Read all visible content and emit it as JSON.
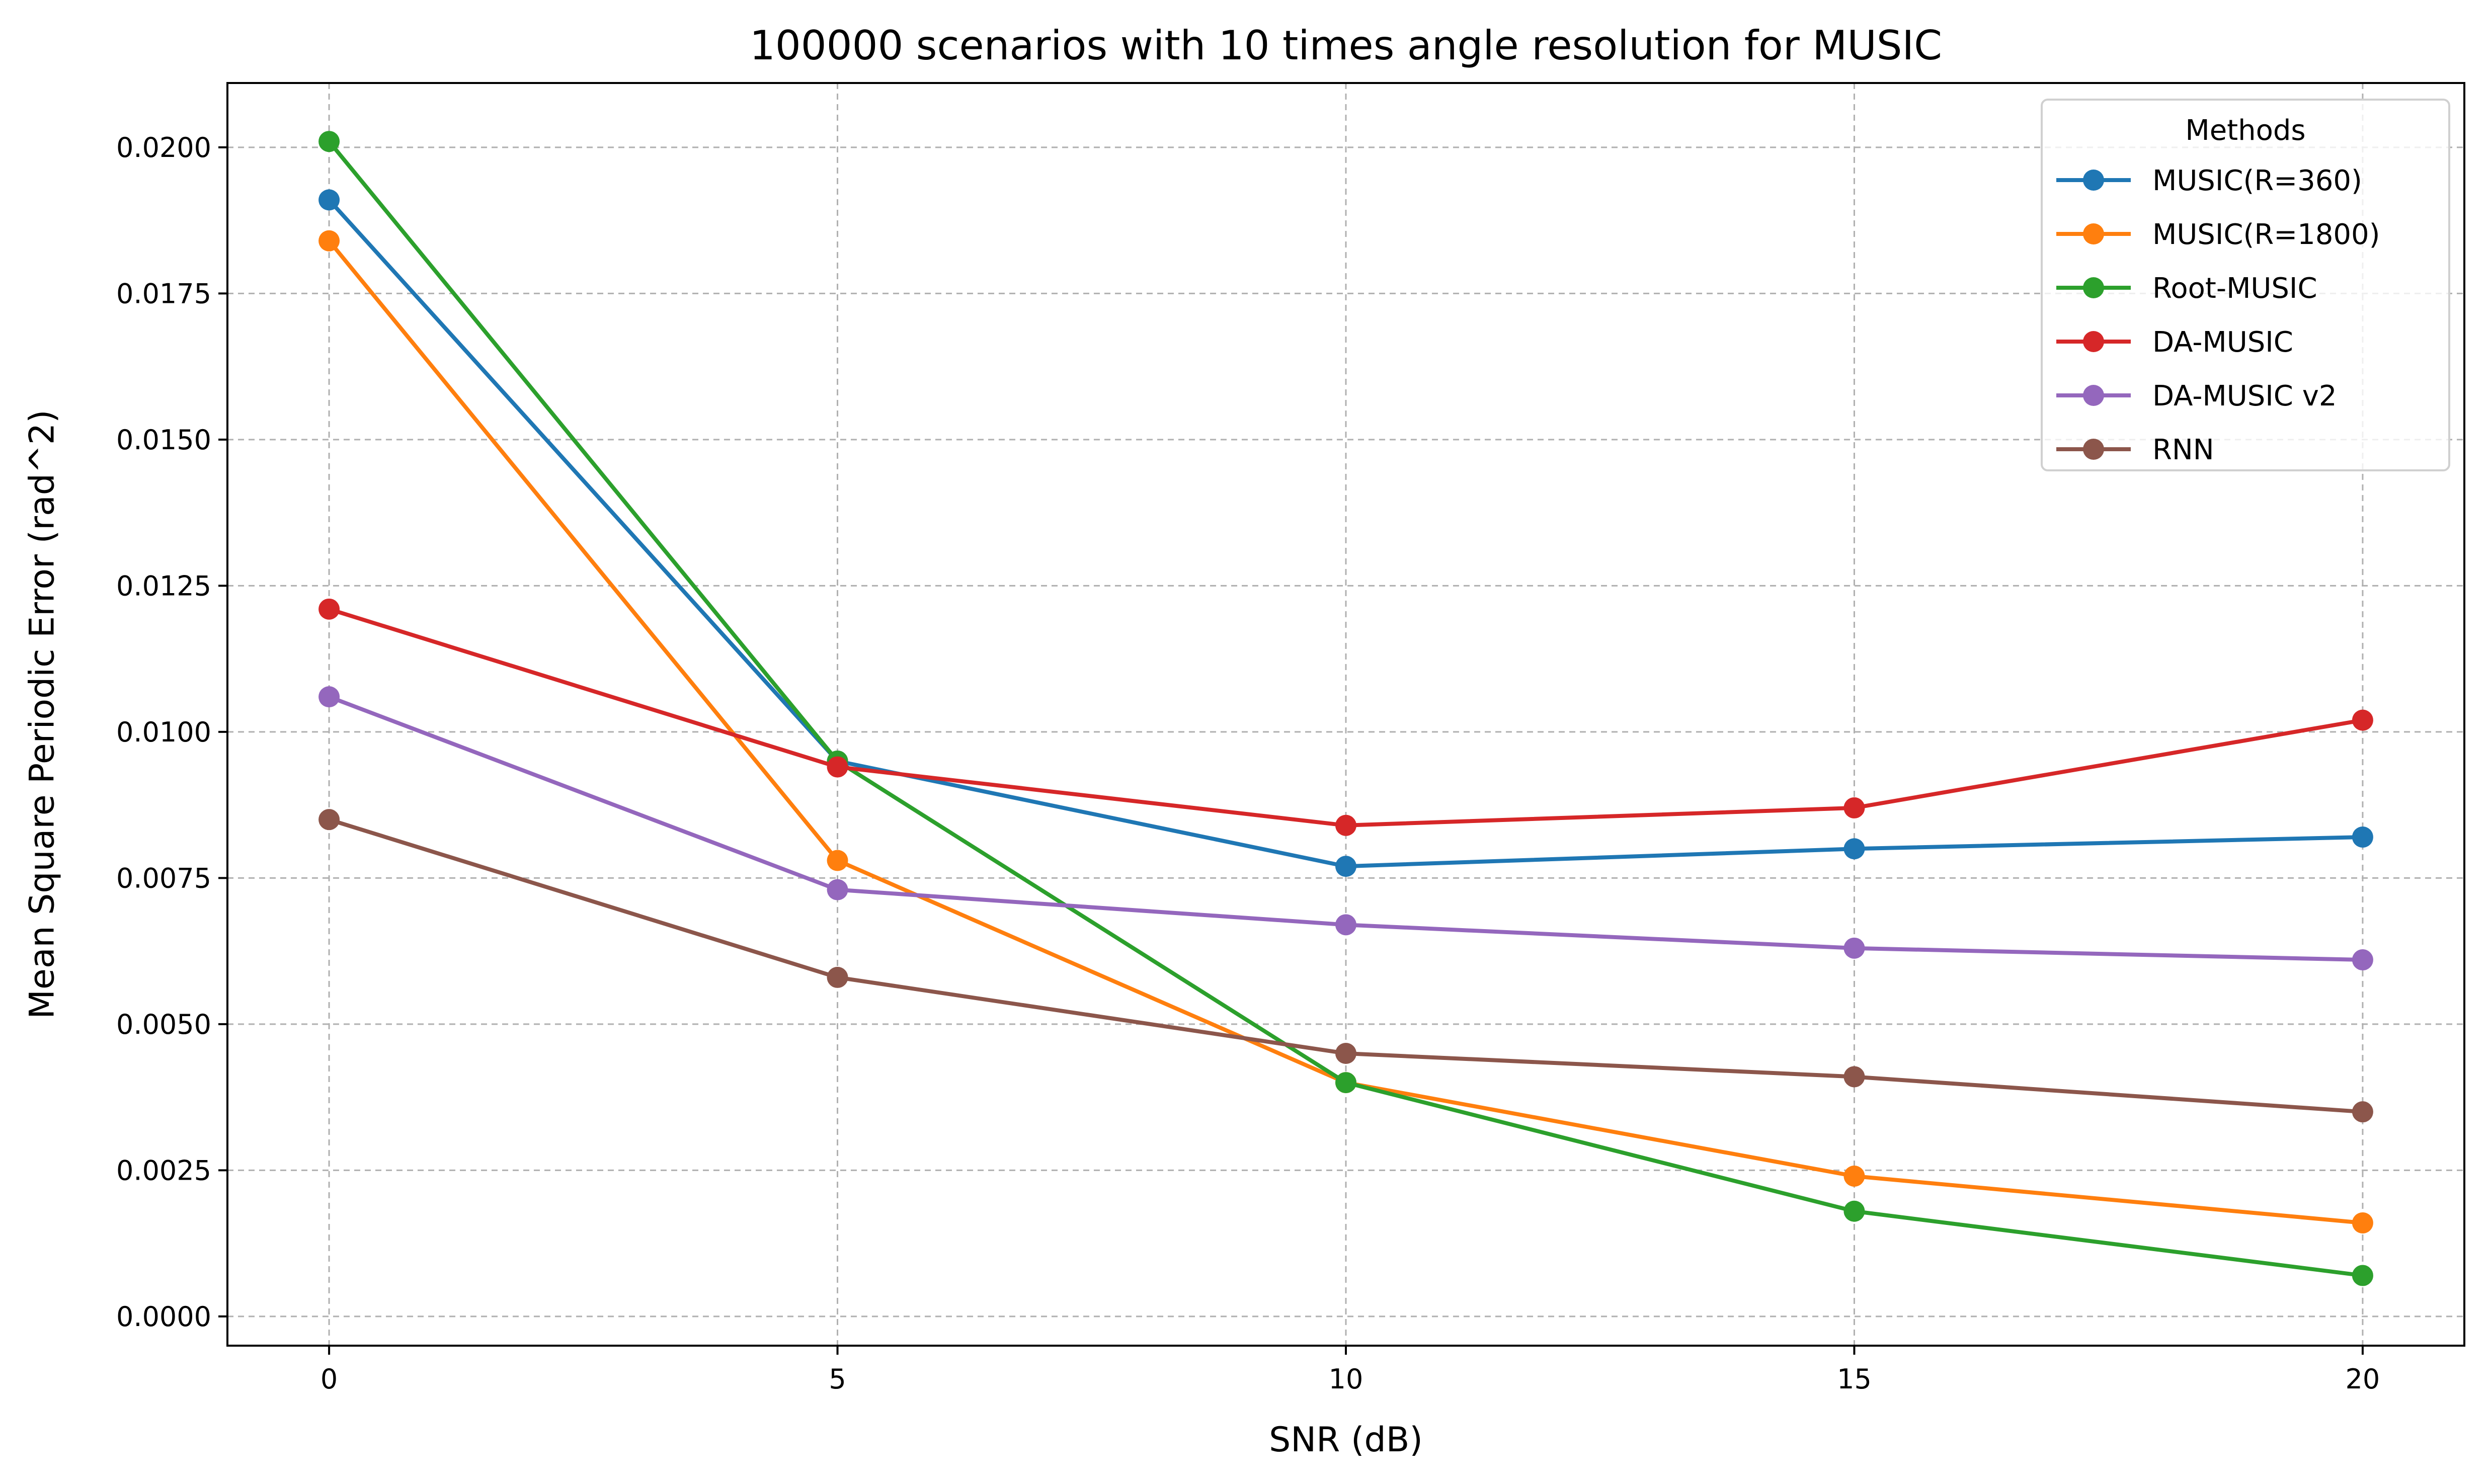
{
  "chart_data": {
    "type": "line",
    "title": "100000 scenarios with 10 times angle resolution for MUSIC",
    "xlabel": "SNR (dB)",
    "ylabel": "Mean Square Periodic Error (rad^2)",
    "x": [
      0,
      5,
      10,
      15,
      20
    ],
    "xlim": [
      -1,
      21
    ],
    "ylim": [
      -0.0005,
      0.0211
    ],
    "xticks": [
      0,
      5,
      10,
      15,
      20
    ],
    "xtick_labels": [
      "0",
      "5",
      "10",
      "15",
      "20"
    ],
    "yticks": [
      0.0,
      0.0025,
      0.005,
      0.0075,
      0.01,
      0.0125,
      0.015,
      0.0175,
      0.02
    ],
    "ytick_labels": [
      "0.0000",
      "0.0025",
      "0.0050",
      "0.0075",
      "0.0100",
      "0.0125",
      "0.0150",
      "0.0175",
      "0.0200"
    ],
    "grid": true,
    "legend": {
      "title": "Methods",
      "position": "top-right"
    },
    "series": [
      {
        "name": "MUSIC(R=360)",
        "color": "#1f77b4",
        "values": [
          0.0191,
          0.0095,
          0.0077,
          0.008,
          0.0082
        ]
      },
      {
        "name": "MUSIC(R=1800)",
        "color": "#ff7f0e",
        "values": [
          0.0184,
          0.0078,
          0.004,
          0.0024,
          0.0016
        ]
      },
      {
        "name": "Root-MUSIC",
        "color": "#2ca02c",
        "values": [
          0.0201,
          0.0095,
          0.004,
          0.0018,
          0.0007
        ]
      },
      {
        "name": "DA-MUSIC",
        "color": "#d62728",
        "values": [
          0.0121,
          0.0094,
          0.0084,
          0.0087,
          0.0102
        ]
      },
      {
        "name": "DA-MUSIC v2",
        "color": "#9467bd",
        "values": [
          0.0106,
          0.0073,
          0.0067,
          0.0063,
          0.0061
        ]
      },
      {
        "name": "RNN",
        "color": "#8c564b",
        "values": [
          0.0085,
          0.0058,
          0.0045,
          0.0041,
          0.0035
        ]
      }
    ]
  }
}
